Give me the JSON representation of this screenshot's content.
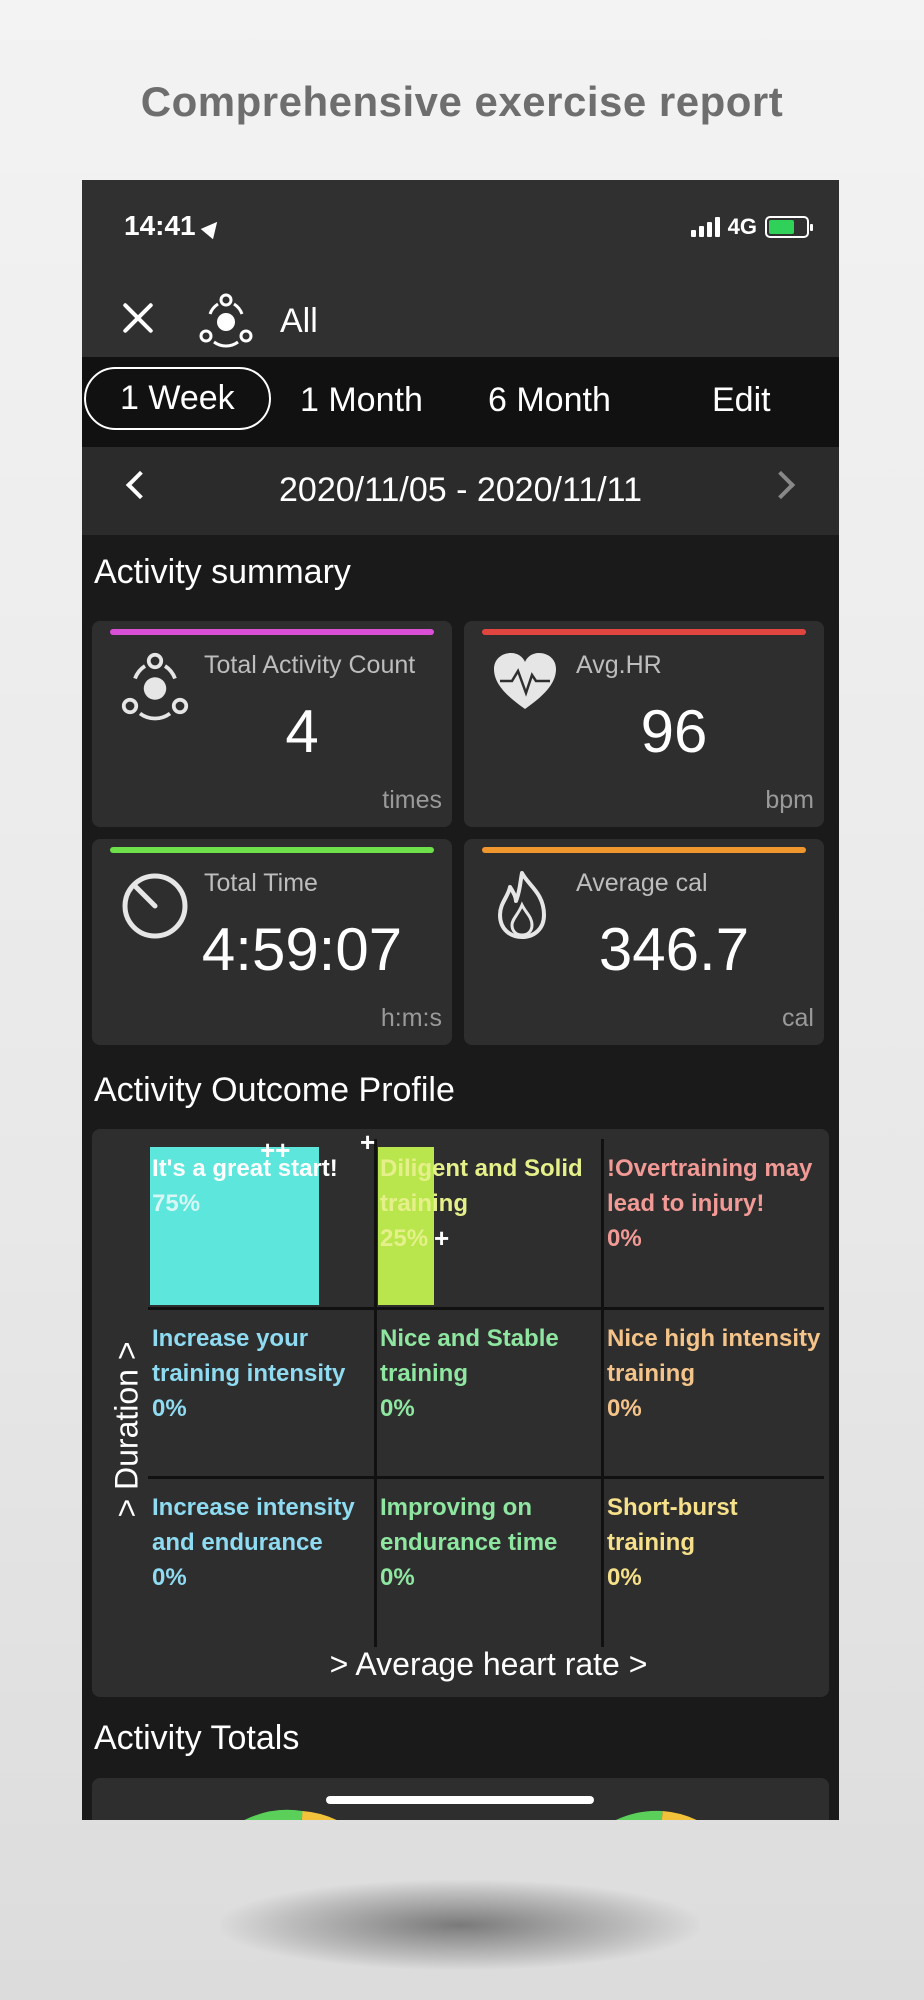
{
  "headline": "Comprehensive exercise report",
  "status": {
    "time": "14:41",
    "network": "4G"
  },
  "topbar": {
    "filter_label": "All"
  },
  "tabs": [
    {
      "label": "1 Week",
      "active": true
    },
    {
      "label": "1 Month",
      "active": false
    },
    {
      "label": "6 Month",
      "active": false
    },
    {
      "label": "Edit",
      "active": false
    }
  ],
  "date_range": "2020/11/05 - 2020/11/11",
  "summary": {
    "title": "Activity summary",
    "cards": [
      {
        "label": "Total Activity Count",
        "value": "4",
        "unit": "times",
        "color": "#d94fd6",
        "icon": "activity-icon"
      },
      {
        "label": "Avg.HR",
        "value": "96",
        "unit": "bpm",
        "color": "#e0453f",
        "icon": "heart-rate-icon"
      },
      {
        "label": "Total Time",
        "value": "4:59:07",
        "unit": "h:m:s",
        "color": "#6ee04a",
        "icon": "timer-icon"
      },
      {
        "label": "Average cal",
        "value": "346.7",
        "unit": "cal",
        "color": "#f0962e",
        "icon": "flame-icon"
      }
    ]
  },
  "outcome": {
    "title": "Activity Outcome Profile",
    "y_axis": "> Duration >",
    "x_axis": "> Average heart rate >",
    "cells": [
      {
        "text": "It's a great start!",
        "pct": "75%",
        "fraction": 0.75,
        "color": "#ffffff",
        "bar": "#5ce6dc"
      },
      {
        "text": "Diligent and Solid training",
        "pct": "25%",
        "fraction": 0.25,
        "color": "#e6f08a",
        "bar": "#b8e64c"
      },
      {
        "text": "!Overtraining may lead to injury!",
        "pct": "0%",
        "fraction": 0,
        "color": "#f29a96",
        "bar": ""
      },
      {
        "text": "Increase your training intensity",
        "pct": "0%",
        "fraction": 0,
        "color": "#8fdcf2",
        "bar": ""
      },
      {
        "text": "Nice and Stable training",
        "pct": "0%",
        "fraction": 0,
        "color": "#8ee6a0",
        "bar": ""
      },
      {
        "text": "Nice high intensity training",
        "pct": "0%",
        "fraction": 0,
        "color": "#f5c48a",
        "bar": ""
      },
      {
        "text": "Increase intensity and endurance",
        "pct": "0%",
        "fraction": 0,
        "color": "#8fdcf2",
        "bar": ""
      },
      {
        "text": "Improving on endurance time",
        "pct": "0%",
        "fraction": 0,
        "color": "#8ee6a0",
        "bar": ""
      },
      {
        "text": "Short-burst training",
        "pct": "0%",
        "fraction": 0,
        "color": "#f7e08a",
        "bar": ""
      }
    ]
  },
  "totals": {
    "title": "Activity Totals"
  }
}
